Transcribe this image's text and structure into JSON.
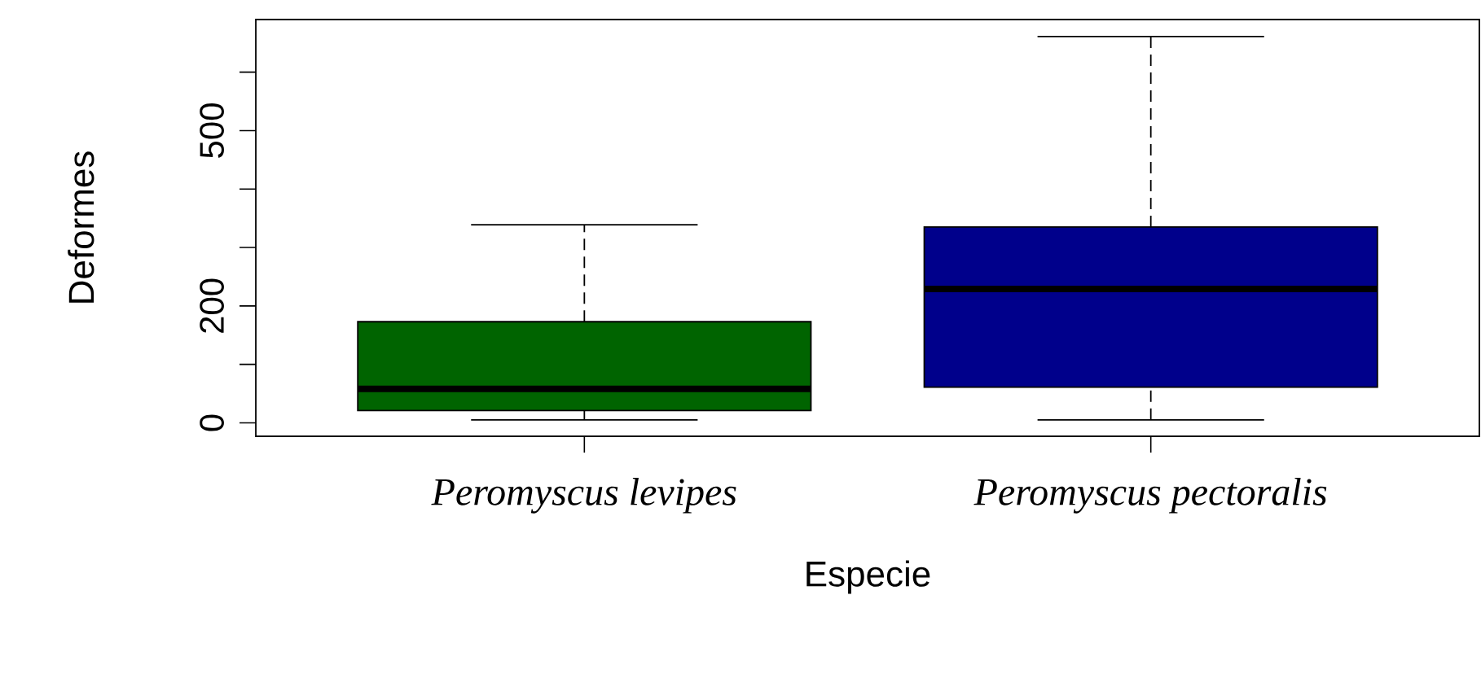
{
  "chart_data": {
    "type": "box",
    "categories": [
      "Peromyscus levipes",
      "Peromyscus pectoralis"
    ],
    "xlabel": "Especie",
    "ylabel": "Deformes",
    "ylim": [
      -23,
      690
    ],
    "yticks": [
      0,
      {
        "value": 100,
        "label": null
      },
      200,
      {
        "value": 300,
        "label": null
      },
      {
        "value": 400,
        "label": null
      },
      500,
      {
        "value": 600,
        "label": null
      }
    ],
    "colors": [
      "#006400",
      "#00008b"
    ],
    "boxes": [
      {
        "low": 5,
        "q1": 21,
        "median": 58,
        "q3": 173,
        "high": 339
      },
      {
        "low": 5,
        "q1": 61,
        "median": 229,
        "q3": 335,
        "high": 661
      }
    ]
  }
}
